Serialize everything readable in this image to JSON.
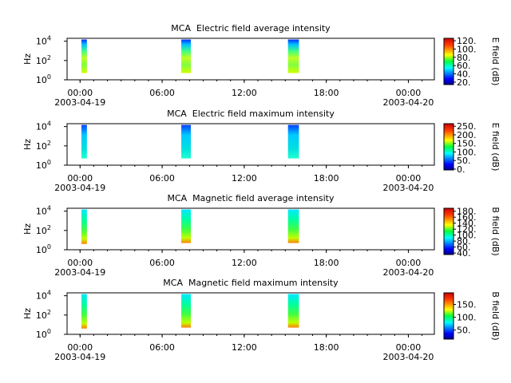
{
  "chart_data": [
    {
      "type": "spectrogram",
      "title": "MCA  Electric field average intensity",
      "ylabel": "Hz",
      "colorbar_label": "E field (dB)",
      "xlim": [
        -0.95,
        25.9
      ],
      "xticks": [
        {
          "value": 0,
          "label": "00:00",
          "date": "2003-04-19"
        },
        {
          "value": 6,
          "label": "06:00"
        },
        {
          "value": 12,
          "label": "12:00"
        },
        {
          "value": 18,
          "label": "18:00"
        },
        {
          "value": 24,
          "label": "00:00",
          "date": "2003-04-20"
        }
      ],
      "ylim": [
        1,
        20000
      ],
      "log_y": true,
      "yticks": [
        {
          "value": 1,
          "label": "10",
          "power": "0"
        },
        {
          "value": 100,
          "label": "10",
          "power": "2"
        },
        {
          "value": 10000,
          "label": "10",
          "power": "4"
        }
      ],
      "clim": [
        14,
        126
      ],
      "cticks": [
        {
          "value": 20,
          "label": "20."
        },
        {
          "value": 40,
          "label": "40."
        },
        {
          "value": 60,
          "label": "60."
        },
        {
          "value": 80,
          "label": "80."
        },
        {
          "value": 100,
          "label": "100."
        },
        {
          "value": 120,
          "label": "120."
        }
      ],
      "segments": [
        {
          "start": 0.1,
          "end": 0.5,
          "flo": 5,
          "fhi": 15000
        },
        {
          "start": 7.4,
          "end": 8.1,
          "flo": 5,
          "fhi": 15000
        },
        {
          "start": 15.2,
          "end": 16.0,
          "flo": 5,
          "fhi": 15000
        }
      ]
    },
    {
      "type": "spectrogram",
      "title": "MCA  Electric field maximum intensity",
      "ylabel": "Hz",
      "colorbar_label": "E field (dB)",
      "xlim": [
        -0.95,
        25.9
      ],
      "xticks": [
        {
          "value": 0,
          "label": "00:00",
          "date": "2003-04-19"
        },
        {
          "value": 6,
          "label": "06:00"
        },
        {
          "value": 12,
          "label": "12:00"
        },
        {
          "value": 18,
          "label": "18:00"
        },
        {
          "value": 24,
          "label": "00:00",
          "date": "2003-04-20"
        }
      ],
      "ylim": [
        1,
        20000
      ],
      "log_y": true,
      "yticks": [
        {
          "value": 1,
          "label": "10",
          "power": "0"
        },
        {
          "value": 100,
          "label": "10",
          "power": "2"
        },
        {
          "value": 10000,
          "label": "10",
          "power": "4"
        }
      ],
      "clim": [
        -5,
        265
      ],
      "cticks": [
        {
          "value": 0,
          "label": "0."
        },
        {
          "value": 50,
          "label": "50."
        },
        {
          "value": 100,
          "label": "100."
        },
        {
          "value": 150,
          "label": "150."
        },
        {
          "value": 200,
          "label": "200."
        },
        {
          "value": 250,
          "label": "250."
        }
      ],
      "segments": [
        {
          "start": 0.1,
          "end": 0.5,
          "flo": 5,
          "fhi": 15000
        },
        {
          "start": 7.4,
          "end": 8.1,
          "flo": 5,
          "fhi": 15000
        },
        {
          "start": 15.2,
          "end": 16.0,
          "flo": 5,
          "fhi": 15000
        }
      ]
    },
    {
      "type": "spectrogram",
      "title": "MCA  Magnetic field average intensity",
      "ylabel": "Hz",
      "colorbar_label": "B field (dB)",
      "xlim": [
        -0.95,
        25.9
      ],
      "xticks": [
        {
          "value": 0,
          "label": "00:00",
          "date": "2003-04-19"
        },
        {
          "value": 6,
          "label": "06:00"
        },
        {
          "value": 12,
          "label": "12:00"
        },
        {
          "value": 18,
          "label": "18:00"
        },
        {
          "value": 24,
          "label": "00:00",
          "date": "2003-04-20"
        }
      ],
      "ylim": [
        1,
        20000
      ],
      "log_y": true,
      "yticks": [
        {
          "value": 1,
          "label": "10",
          "power": "0"
        },
        {
          "value": 100,
          "label": "10",
          "power": "2"
        },
        {
          "value": 10000,
          "label": "10",
          "power": "4"
        }
      ],
      "clim": [
        35,
        190
      ],
      "cticks": [
        {
          "value": 40,
          "label": "40."
        },
        {
          "value": 60,
          "label": "60."
        },
        {
          "value": 80,
          "label": "80."
        },
        {
          "value": 100,
          "label": "100."
        },
        {
          "value": 120,
          "label": "120."
        },
        {
          "value": 140,
          "label": "140."
        },
        {
          "value": 160,
          "label": "160."
        },
        {
          "value": 180,
          "label": "180."
        }
      ],
      "segments": [
        {
          "start": 0.1,
          "end": 0.5,
          "flo": 4,
          "fhi": 15000
        },
        {
          "start": 7.4,
          "end": 8.1,
          "flo": 5,
          "fhi": 15000
        },
        {
          "start": 15.2,
          "end": 16.0,
          "flo": 5,
          "fhi": 15000
        }
      ]
    },
    {
      "type": "spectrogram",
      "title": "MCA  Magnetic field maximum intensity",
      "ylabel": "Hz",
      "colorbar_label": "B field (dB)",
      "xlim": [
        -0.95,
        25.9
      ],
      "xticks": [
        {
          "value": 0,
          "label": "00:00",
          "date": "2003-04-19"
        },
        {
          "value": 6,
          "label": "06:00"
        },
        {
          "value": 12,
          "label": "12:00"
        },
        {
          "value": 18,
          "label": "18:00"
        },
        {
          "value": 24,
          "label": "00:00",
          "date": "2003-04-20"
        }
      ],
      "ylim": [
        1,
        20000
      ],
      "log_y": true,
      "yticks": [
        {
          "value": 1,
          "label": "10",
          "power": "0"
        },
        {
          "value": 100,
          "label": "10",
          "power": "2"
        },
        {
          "value": 10000,
          "label": "10",
          "power": "4"
        }
      ],
      "clim": [
        15,
        195
      ],
      "cticks": [
        {
          "value": 50,
          "label": "50."
        },
        {
          "value": 100,
          "label": "100."
        },
        {
          "value": 150,
          "label": "150."
        }
      ],
      "segments": [
        {
          "start": 0.1,
          "end": 0.5,
          "flo": 4,
          "fhi": 15000
        },
        {
          "start": 7.4,
          "end": 8.1,
          "flo": 5,
          "fhi": 15000
        },
        {
          "start": 15.2,
          "end": 16.0,
          "flo": 5,
          "fhi": 15000
        }
      ]
    }
  ]
}
